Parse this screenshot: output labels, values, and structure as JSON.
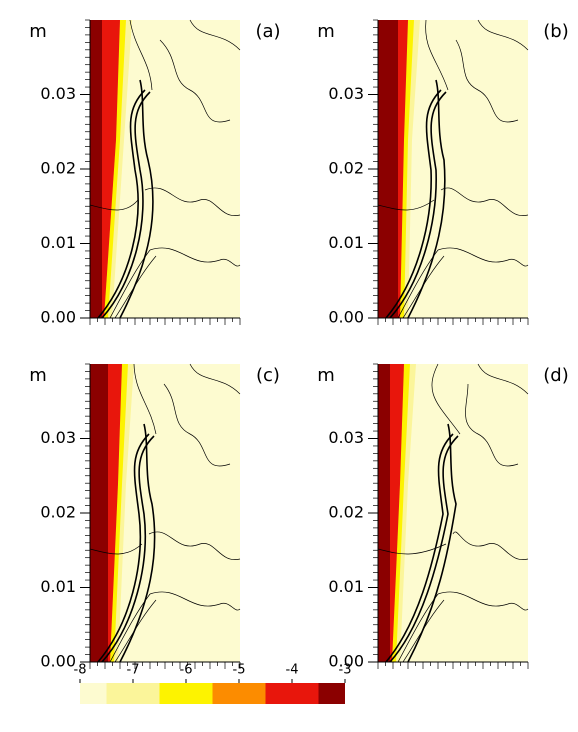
{
  "chart_data": [
    {
      "type": "contour",
      "panel_label": "(a)",
      "y_label": "m",
      "ylim": [
        0,
        0.04
      ],
      "yticks": [
        {
          "value": 0,
          "label": "0.00"
        },
        0.01,
        0.02,
        0.03
      ]
    },
    {
      "type": "contour",
      "panel_label": "(b)",
      "y_label": "m",
      "ylim": [
        0,
        0.04
      ],
      "yticks": [
        {
          "value": 0,
          "label": "0.00"
        },
        0.01,
        0.02,
        0.03
      ]
    },
    {
      "type": "contour",
      "panel_label": "(c)",
      "y_label": "m",
      "ylim": [
        0,
        0.04
      ],
      "yticks": [
        {
          "value": 0,
          "label": "0.00"
        },
        0.01,
        0.02,
        0.03
      ]
    },
    {
      "type": "contour",
      "panel_label": "(d)",
      "y_label": "m",
      "ylim": [
        0,
        0.04
      ],
      "yticks": [
        {
          "value": 0,
          "label": "0.00"
        },
        0.01,
        0.02,
        0.03
      ]
    },
    {
      "type": "colorbar",
      "xlim": [
        -8,
        -3
      ],
      "xticks": [
        -8,
        -7,
        -6,
        -5,
        -4,
        -3
      ],
      "bins": [
        -8,
        -7.5,
        -6.5,
        -5.5,
        -4.5,
        -3.5,
        -3
      ],
      "colors": [
        "#fdfbd0",
        "#fbf59a",
        "#fdf300",
        "#fc8c00",
        "#e8160c",
        "#8b0000"
      ]
    }
  ]
}
